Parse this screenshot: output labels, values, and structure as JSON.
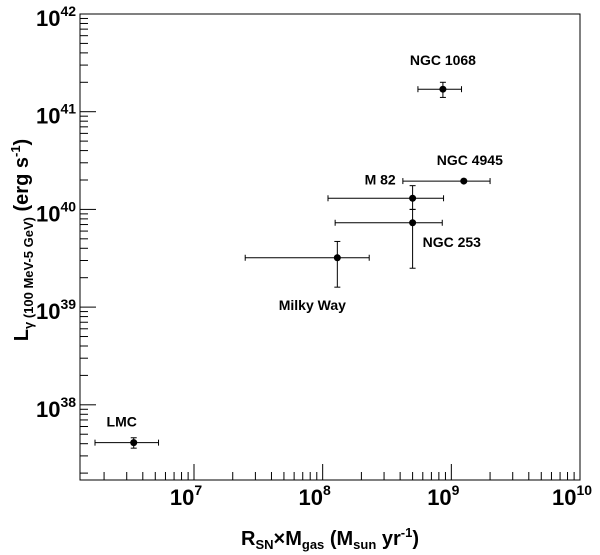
{
  "chart_data": {
    "type": "scatter",
    "title": "",
    "xlabel": {
      "main": "R",
      "main_sub": "SN",
      "times": "×",
      "gas": "M",
      "gas_sub": "gas",
      "unit_open": " (M",
      "unit_sub": "sun",
      "unit_rest": " yr",
      "unit_sup": "-1",
      "unit_close": ")"
    },
    "ylabel": {
      "main": "L",
      "main_sub": "γ (100 MeV-5 GeV)",
      "unit_open": " (erg s",
      "unit_sup": "-1",
      "unit_close": ")"
    },
    "x_scale": "log",
    "y_scale": "log",
    "xlim": [
      1300000.0,
      10000000000.0
    ],
    "ylim": [
      1.7e+37,
      1e+42
    ],
    "x_ticks": [
      {
        "base": "10",
        "exp": "7",
        "value": 10000000.0
      },
      {
        "base": "10",
        "exp": "8",
        "value": 100000000.0
      },
      {
        "base": "10",
        "exp": "9",
        "value": 1000000000.0
      },
      {
        "base": "10",
        "exp": "10",
        "value": 10000000000.0
      }
    ],
    "y_ticks": [
      {
        "base": "10",
        "exp": "38",
        "value": 1e+38
      },
      {
        "base": "10",
        "exp": "39",
        "value": 1e+39
      },
      {
        "base": "10",
        "exp": "40",
        "value": 1e+40
      },
      {
        "base": "10",
        "exp": "41",
        "value": 1e+41
      },
      {
        "base": "10",
        "exp": "42",
        "value": 1e+42
      }
    ],
    "grid": false,
    "points": [
      {
        "name": "LMC",
        "x": 3400000.0,
        "x_err": [
          1700000.0,
          5300000.0
        ],
        "y": 4.1e+37,
        "y_err": [
          3.6e+37,
          4.6e+37
        ]
      },
      {
        "name": "Milky Way",
        "x": 130000000.0,
        "x_err": [
          25000000.0,
          230000000.0
        ],
        "y": 3.2e+39,
        "y_err": [
          1.6e+39,
          4.7e+39
        ]
      },
      {
        "name": "NGC 253",
        "x": 500000000.0,
        "x_err": [
          125000000.0,
          850000000.0
        ],
        "y": 7.3e+39,
        "y_err": [
          2.5e+39,
          1e+40
        ]
      },
      {
        "name": "M 82",
        "x": 500000000.0,
        "x_err": [
          110000000.0,
          870000000.0
        ],
        "y": 1.3e+40,
        "y_err": [
          1e+40,
          1.75e+40
        ]
      },
      {
        "name": "NGC 4945",
        "x": 1250000000.0,
        "x_err": [
          420000000.0,
          2000000000.0
        ],
        "y": 1.95e+40,
        "y_err": [
          1.95e+40,
          1.95e+40
        ]
      },
      {
        "name": "NGC 1068",
        "x": 860000000.0,
        "x_err": [
          550000000.0,
          1200000000.0
        ],
        "y": 1.7e+41,
        "y_err": [
          1.4e+41,
          2e+41
        ]
      }
    ]
  }
}
